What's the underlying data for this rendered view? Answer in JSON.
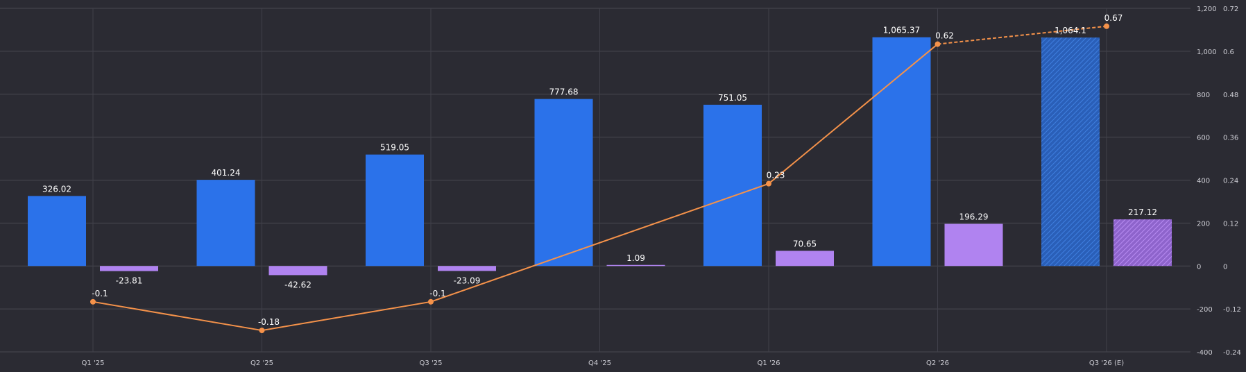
{
  "chart_data": {
    "type": "bar",
    "categories": [
      "Q1 '25",
      "Q2 '25",
      "Q3 '25",
      "Q4 '25",
      "Q1 '26",
      "Q2 '26",
      "Q3 '26 (E)"
    ],
    "series": [
      {
        "kind": "bar",
        "axis": "left",
        "color": "#2b72ea",
        "values": [
          326.02,
          401.24,
          519.05,
          777.68,
          751.05,
          1065.37,
          1064.1
        ],
        "labels": [
          "326.02",
          "401.24",
          "519.05",
          "777.68",
          "751.05",
          "1,065.37",
          "1,064.1"
        ]
      },
      {
        "kind": "bar",
        "axis": "left",
        "color": "#b083f0",
        "values": [
          -23.81,
          -42.62,
          -23.09,
          1.09,
          70.65,
          196.29,
          217.12
        ],
        "labels": [
          "-23.81",
          "-42.62",
          "-23.09",
          "1.09",
          "70.65",
          "196.29",
          "217.12"
        ]
      },
      {
        "kind": "line",
        "axis": "right",
        "color": "#f5924a",
        "values": [
          -0.1,
          -0.18,
          -0.1,
          null,
          0.23,
          0.62,
          0.67
        ],
        "labels": [
          "-0.1",
          "-0.18",
          "-0.1",
          "",
          "0.23",
          "0.62",
          "0.67"
        ]
      }
    ],
    "estimate_index": 6,
    "left_axis": {
      "range": [
        -400,
        1200
      ],
      "ticks": [
        "-400",
        "-200",
        "0",
        "200",
        "400",
        "600",
        "800",
        "1,000",
        "1,200"
      ]
    },
    "right_axis": {
      "range": [
        -0.24,
        0.72
      ],
      "ticks": [
        "-0.24",
        "-0.12",
        "0",
        "0.12",
        "0.24",
        "0.36",
        "0.48",
        "0.6",
        "0.72"
      ]
    },
    "grid": true,
    "colors": {
      "background": "#2b2b33",
      "grid": "#4a4a52",
      "text": "#cfcfd6"
    }
  }
}
